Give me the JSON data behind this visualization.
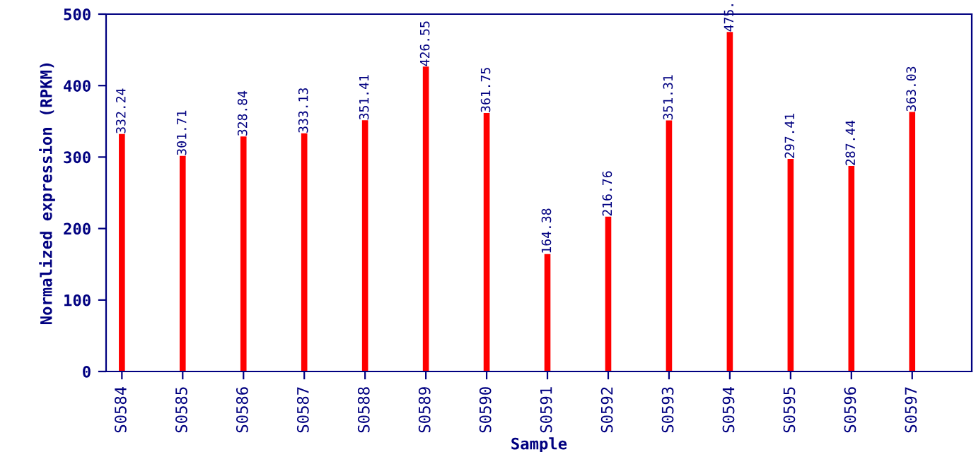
{
  "chart_data": {
    "type": "bar",
    "xlabel": "Sample",
    "ylabel": "Normalized expression (RPKM)",
    "categories": [
      "S0584",
      "S0585",
      "S0586",
      "S0587",
      "S0588",
      "S0589",
      "S0590",
      "S0591",
      "S0592",
      "S0593",
      "S0594",
      "S0595",
      "S0596",
      "S0597"
    ],
    "values": [
      332.24,
      301.71,
      328.84,
      333.13,
      351.41,
      426.55,
      361.75,
      164.38,
      216.76,
      351.31,
      475,
      297.41,
      287.44,
      363.03
    ],
    "value_labels": [
      "332.24",
      "301.71",
      "328.84",
      "333.13",
      "351.41",
      "426.55",
      "361.75",
      "164.38",
      "216.76",
      "351.31",
      "475.",
      "297.41",
      "287.44",
      "363.03"
    ],
    "color": "#ff0000",
    "ylim": [
      0,
      500
    ],
    "yticks": [
      0,
      100,
      200,
      300,
      400,
      500
    ],
    "grid": false,
    "legend": false
  }
}
